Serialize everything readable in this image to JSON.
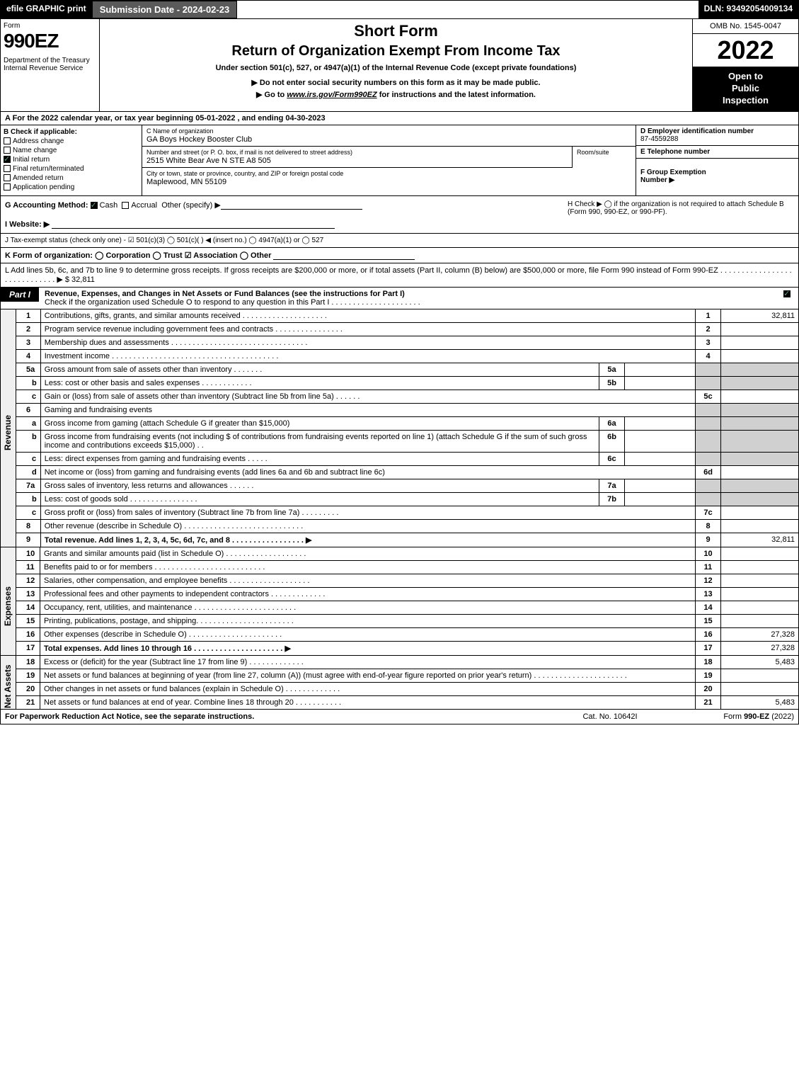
{
  "topbar": {
    "efile": "efile GRAPHIC print",
    "submission": "Submission Date - 2024-02-23",
    "dln": "DLN: 93492054009134"
  },
  "header": {
    "form_label": "Form",
    "form_number": "990EZ",
    "dept": "Department of the Treasury\nInternal Revenue Service",
    "short_form": "Short Form",
    "title": "Return of Organization Exempt From Income Tax",
    "under_section": "Under section 501(c), 527, or 4947(a)(1) of the Internal Revenue Code (except private foundations)",
    "do_not": "▶ Do not enter social security numbers on this form as it may be made public.",
    "goto_prefix": "▶ Go to ",
    "goto_link": "www.irs.gov/Form990EZ",
    "goto_suffix": " for instructions and the latest information.",
    "omb": "OMB No. 1545-0047",
    "year": "2022",
    "inspection": "Open to\nPublic\nInspection"
  },
  "section_a": "A  For the 2022 calendar year, or tax year beginning 05-01-2022  , and ending 04-30-2023",
  "section_b": {
    "title": "B  Check if applicable:",
    "items": [
      {
        "label": "Address change",
        "checked": false
      },
      {
        "label": "Name change",
        "checked": false
      },
      {
        "label": "Initial return",
        "checked": true
      },
      {
        "label": "Final return/terminated",
        "checked": false
      },
      {
        "label": "Amended return",
        "checked": false
      },
      {
        "label": "Application pending",
        "checked": false
      }
    ]
  },
  "section_c": {
    "name_label": "C Name of organization",
    "name": "GA Boys Hockey Booster Club",
    "addr_label": "Number and street (or P. O. box, if mail is not delivered to street address)",
    "addr": "2515 White Bear Ave N STE A8 505",
    "room_label": "Room/suite",
    "city_label": "City or town, state or province, country, and ZIP or foreign postal code",
    "city": "Maplewood, MN  55109"
  },
  "section_d": {
    "ein_label": "D Employer identification number",
    "ein": "87-4559288",
    "phone_label": "E Telephone number",
    "group_label": "F Group Exemption\nNumber  ▶"
  },
  "row_g": {
    "label": "G Accounting Method:",
    "cash": "Cash",
    "accrual": "Accrual",
    "other": "Other (specify) ▶",
    "h_text": "H  Check ▶  ◯  if the organization is not required to attach Schedule B (Form 990, 990-EZ, or 990-PF)."
  },
  "row_i": "I Website: ▶",
  "row_j": "J Tax-exempt status (check only one) -  ☑ 501(c)(3)  ◯ 501(c)(  ) ◀ (insert no.)  ◯ 4947(a)(1) or  ◯ 527",
  "row_k": "K Form of organization:  ◯ Corporation  ◯ Trust  ☑ Association  ◯ Other",
  "row_l": {
    "text": "L Add lines 5b, 6c, and 7b to line 9 to determine gross receipts. If gross receipts are $200,000 or more, or if total assets (Part II, column (B) below) are $500,000 or more, file Form 990 instead of Form 990-EZ  . . . . . . . . . . . . . . . . . . . . . . . . . . . . .  ▶",
    "amount": "$ 32,811"
  },
  "part1": {
    "label": "Part I",
    "title": "Revenue, Expenses, and Changes in Net Assets or Fund Balances (see the instructions for Part I)",
    "subtitle": "Check if the organization used Schedule O to respond to any question in this Part I . . . . . . . . . . . . . . . . . . . . .",
    "vert_labels": {
      "revenue": "Revenue",
      "expenses": "Expenses",
      "netassets": "Net Assets"
    },
    "lines": [
      {
        "n": "1",
        "desc": "Contributions, gifts, grants, and similar amounts received  . . . . . . . . . . . . . . . . . . . .",
        "rn": "1",
        "rv": "32,811"
      },
      {
        "n": "2",
        "desc": "Program service revenue including government fees and contracts  . . . . . . . . . . . . . . . .",
        "rn": "2",
        "rv": ""
      },
      {
        "n": "3",
        "desc": "Membership dues and assessments  . . . . . . . . . . . . . . . . . . . . . . . . . . . . . . . .",
        "rn": "3",
        "rv": ""
      },
      {
        "n": "4",
        "desc": "Investment income  . . . . . . . . . . . . . . . . . . . . . . . . . . . . . . . . . . . . . . .",
        "rn": "4",
        "rv": ""
      },
      {
        "n": "5a",
        "desc": "Gross amount from sale of assets other than inventory  . . . . . . .",
        "mn": "5a",
        "mv": "",
        "shaded": true
      },
      {
        "n": "b",
        "sub": true,
        "desc": "Less: cost or other basis and sales expenses  . . . . . . . . . . . .",
        "mn": "5b",
        "mv": "",
        "shaded": true
      },
      {
        "n": "c",
        "sub": true,
        "desc": "Gain or (loss) from sale of assets other than inventory (Subtract line 5b from line 5a)  . . . . . .",
        "rn": "5c",
        "rv": ""
      },
      {
        "n": "6",
        "desc": "Gaming and fundraising events",
        "shaded": true,
        "nomid": true
      },
      {
        "n": "a",
        "sub": true,
        "desc": "Gross income from gaming (attach Schedule G if greater than $15,000)",
        "mn": "6a",
        "mv": "",
        "shaded": true
      },
      {
        "n": "b",
        "sub": true,
        "desc": "Gross income from fundraising events (not including $                     of contributions from fundraising events reported on line 1) (attach Schedule G if the sum of such gross income and contributions exceeds $15,000)   . .",
        "mn": "6b",
        "mv": "",
        "shaded": true
      },
      {
        "n": "c",
        "sub": true,
        "desc": "Less: direct expenses from gaming and fundraising events  . . . . .",
        "mn": "6c",
        "mv": "",
        "shaded": true
      },
      {
        "n": "d",
        "sub": true,
        "desc": "Net income or (loss) from gaming and fundraising events (add lines 6a and 6b and subtract line 6c)",
        "rn": "6d",
        "rv": ""
      },
      {
        "n": "7a",
        "desc": "Gross sales of inventory, less returns and allowances  . . . . . .",
        "mn": "7a",
        "mv": "",
        "shaded": true
      },
      {
        "n": "b",
        "sub": true,
        "desc": "Less: cost of goods sold        . . . . . . . . . . . . . . . .",
        "mn": "7b",
        "mv": "",
        "shaded": true
      },
      {
        "n": "c",
        "sub": true,
        "desc": "Gross profit or (loss) from sales of inventory (Subtract line 7b from line 7a)  . . . . . . . . .",
        "rn": "7c",
        "rv": ""
      },
      {
        "n": "8",
        "desc": "Other revenue (describe in Schedule O)  . . . . . . . . . . . . . . . . . . . . . . . . . . . .",
        "rn": "8",
        "rv": ""
      },
      {
        "n": "9",
        "desc": "Total revenue. Add lines 1, 2, 3, 4, 5c, 6d, 7c, and 8  . . . . . . . . . . . . . . . . .  ▶",
        "rn": "9",
        "rv": "32,811",
        "bold": true
      }
    ],
    "exp_lines": [
      {
        "n": "10",
        "desc": "Grants and similar amounts paid (list in Schedule O)  . . . . . . . . . . . . . . . . . . .",
        "rn": "10",
        "rv": ""
      },
      {
        "n": "11",
        "desc": "Benefits paid to or for members       . . . . . . . . . . . . . . . . . . . . . . . . . .",
        "rn": "11",
        "rv": ""
      },
      {
        "n": "12",
        "desc": "Salaries, other compensation, and employee benefits  . . . . . . . . . . . . . . . . . . .",
        "rn": "12",
        "rv": ""
      },
      {
        "n": "13",
        "desc": "Professional fees and other payments to independent contractors  . . . . . . . . . . . . .",
        "rn": "13",
        "rv": ""
      },
      {
        "n": "14",
        "desc": "Occupancy, rent, utilities, and maintenance . . . . . . . . . . . . . . . . . . . . . . . .",
        "rn": "14",
        "rv": ""
      },
      {
        "n": "15",
        "desc": "Printing, publications, postage, and shipping.  . . . . . . . . . . . . . . . . . . . . . .",
        "rn": "15",
        "rv": ""
      },
      {
        "n": "16",
        "desc": "Other expenses (describe in Schedule O)       . . . . . . . . . . . . . . . . . . . . . .",
        "rn": "16",
        "rv": "27,328"
      },
      {
        "n": "17",
        "desc": "Total expenses. Add lines 10 through 16      . . . . . . . . . . . . . . . . . . . . .  ▶",
        "rn": "17",
        "rv": "27,328",
        "bold": true
      }
    ],
    "net_lines": [
      {
        "n": "18",
        "desc": "Excess or (deficit) for the year (Subtract line 17 from line 9)       . . . . . . . . . . . . .",
        "rn": "18",
        "rv": "5,483"
      },
      {
        "n": "19",
        "desc": "Net assets or fund balances at beginning of year (from line 27, column (A)) (must agree with end-of-year figure reported on prior year's return) . . . . . . . . . . . . . . . . . . . . . .",
        "rn": "19",
        "rv": ""
      },
      {
        "n": "20",
        "desc": "Other changes in net assets or fund balances (explain in Schedule O) . . . . . . . . . . . . .",
        "rn": "20",
        "rv": ""
      },
      {
        "n": "21",
        "desc": "Net assets or fund balances at end of year. Combine lines 18 through 20 . . . . . . . . . . .",
        "rn": "21",
        "rv": "5,483"
      }
    ]
  },
  "footer": {
    "left": "For Paperwork Reduction Act Notice, see the separate instructions.",
    "mid": "Cat. No. 10642I",
    "right_prefix": "Form ",
    "right_form": "990-EZ",
    "right_suffix": " (2022)"
  }
}
